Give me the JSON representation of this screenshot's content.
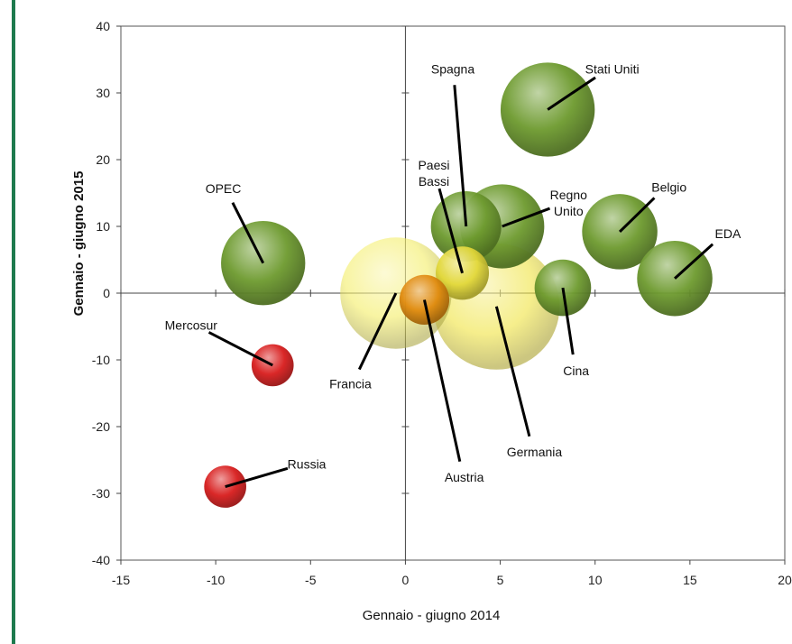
{
  "accent_color": "#1e7a4e",
  "chart_data": {
    "type": "bubble",
    "title": "",
    "xlabel": "Gennaio - giugno 2014",
    "ylabel": "Gennaio - giugno 2015",
    "xlim": [
      -15,
      20
    ],
    "ylim": [
      -40,
      40
    ],
    "xticks": [
      -15,
      -10,
      -5,
      0,
      5,
      10,
      15,
      20
    ],
    "xtick_labels": [
      "-15",
      "-10",
      "-5",
      "0",
      "5",
      "10",
      "15",
      "20"
    ],
    "yticks": [
      -40,
      -30,
      -20,
      -10,
      0,
      10,
      20,
      30,
      40
    ],
    "ytick_labels": [
      "-40",
      "-30",
      "-20",
      "-10",
      "0",
      "10",
      "20",
      "30",
      "40"
    ],
    "grid": false,
    "quadrant_lines": true,
    "legend": "none",
    "points": [
      {
        "label": "Stati Uniti",
        "x": 7.5,
        "y": 27.5,
        "size": 2.5,
        "color": "#6d9a2e",
        "ann_x": 10.9,
        "ann_y": 33.6
      },
      {
        "label": "Spagna",
        "x": 3.2,
        "y": 10.0,
        "size": 1.4,
        "color": "#6d9a2e",
        "ann_x": 2.5,
        "ann_y": 33.6
      },
      {
        "label": "Regno\nUnito",
        "x": 5.1,
        "y": 10.0,
        "size": 2.0,
        "color": "#6d9a2e",
        "ann_x": 8.6,
        "ann_y": 13.5
      },
      {
        "label": "Belgio",
        "x": 11.3,
        "y": 9.2,
        "size": 1.6,
        "color": "#6d9a2e",
        "ann_x": 13.9,
        "ann_y": 15.9
      },
      {
        "label": "EDA",
        "x": 14.2,
        "y": 2.2,
        "size": 1.6,
        "color": "#6d9a2e",
        "ann_x": 17.0,
        "ann_y": 8.9
      },
      {
        "label": "Cina",
        "x": 8.3,
        "y": 0.8,
        "size": 0.9,
        "color": "#6d9a2e",
        "ann_x": 9.0,
        "ann_y": -11.6
      },
      {
        "label": "OPEC",
        "x": -7.5,
        "y": 4.5,
        "size": 2.0,
        "color": "#6d9a2e",
        "ann_x": -9.6,
        "ann_y": 15.7
      },
      {
        "label": "Paesi\nBassi",
        "x": 3.0,
        "y": 3.0,
        "size": 0.8,
        "color": "#e2d83a",
        "ann_x": 1.5,
        "ann_y": 18.0
      },
      {
        "label": "Francia",
        "x": -0.5,
        "y": 0.0,
        "size": 3.5,
        "color": "#f4ee6a",
        "ann_x": -2.9,
        "ann_y": -13.6
      },
      {
        "label": "Germania",
        "x": 4.8,
        "y": -2.0,
        "size": 4.5,
        "color": "#f0e445",
        "ann_x": 6.8,
        "ann_y": -23.8
      },
      {
        "label": "Austria",
        "x": 1.0,
        "y": -1.0,
        "size": 0.7,
        "color": "#e08a0e",
        "ann_x": 3.1,
        "ann_y": -27.6
      },
      {
        "label": "Mercosur",
        "x": -7.0,
        "y": -10.8,
        "size": 0.5,
        "color": "#d81c1c",
        "ann_x": -11.3,
        "ann_y": -4.8
      },
      {
        "label": "Russia",
        "x": -9.5,
        "y": -29.0,
        "size": 0.5,
        "color": "#d81c1c",
        "ann_x": -5.2,
        "ann_y": -25.6
      }
    ]
  }
}
